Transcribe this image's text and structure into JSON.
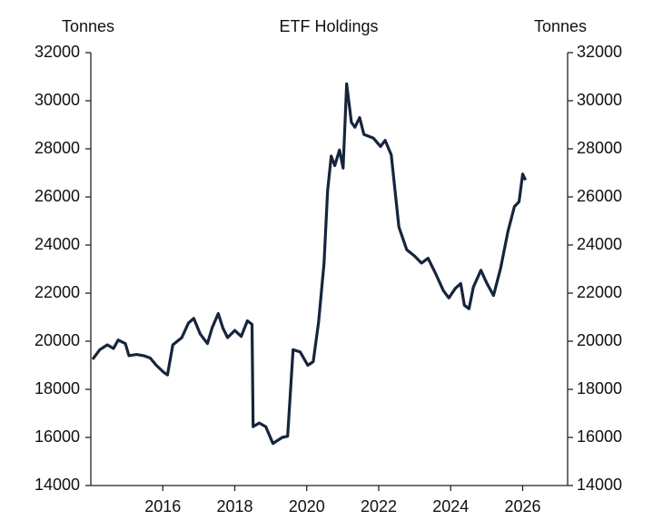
{
  "chart_data": {
    "type": "line",
    "title": "ETF Holdings",
    "ylabel": "Tonnes",
    "y2label": "Tonnes",
    "xlim": [
      2014,
      2027.25
    ],
    "xticks": [
      2016,
      2018,
      2020,
      2022,
      2024,
      2026
    ],
    "ylim": [
      14000,
      32000
    ],
    "yticks": [
      14000,
      16000,
      18000,
      20000,
      22000,
      24000,
      26000,
      28000,
      30000,
      32000
    ],
    "y2lim": [
      14000,
      32000
    ],
    "y2ticks": [
      14000,
      16000,
      18000,
      20000,
      22000,
      24000,
      26000,
      28000,
      30000,
      32000
    ],
    "series": [
      {
        "name": "ETF Holdings",
        "color": "#16253b",
        "x": [
          2014.05,
          2014.25,
          2014.46,
          2014.63,
          2014.76,
          2014.96,
          2015.06,
          2015.27,
          2015.47,
          2015.65,
          2015.82,
          2016.03,
          2016.13,
          2016.28,
          2016.53,
          2016.71,
          2016.86,
          2017.04,
          2017.24,
          2017.37,
          2017.54,
          2017.67,
          2017.8,
          2018.0,
          2018.18,
          2018.35,
          2018.48,
          2018.51,
          2018.68,
          2018.86,
          2019.06,
          2019.32,
          2019.47,
          2019.62,
          2019.82,
          2020.03,
          2020.18,
          2020.33,
          2020.48,
          2020.58,
          2020.68,
          2020.78,
          2020.91,
          2021.01,
          2021.11,
          2021.24,
          2021.34,
          2021.47,
          2021.59,
          2021.85,
          2022.05,
          2022.18,
          2022.35,
          2022.56,
          2022.78,
          2022.99,
          2023.19,
          2023.37,
          2023.57,
          2023.8,
          2023.95,
          2024.13,
          2024.28,
          2024.38,
          2024.51,
          2024.63,
          2024.84,
          2025.01,
          2025.19,
          2025.39,
          2025.59,
          2025.77,
          2025.9,
          2026.0,
          2026.08
        ],
        "values": [
          19250,
          19650,
          19850,
          19700,
          20050,
          19900,
          19400,
          19450,
          19400,
          19300,
          19000,
          18700,
          18600,
          19850,
          20150,
          20750,
          20950,
          20300,
          19900,
          20550,
          21150,
          20550,
          20150,
          20450,
          20200,
          20850,
          20700,
          16450,
          16600,
          16450,
          15750,
          16000,
          16050,
          19650,
          19550,
          19000,
          19150,
          20800,
          23250,
          26250,
          27700,
          27300,
          27950,
          27200,
          30700,
          29100,
          28900,
          29300,
          28600,
          28450,
          28100,
          28350,
          27750,
          24750,
          23800,
          23550,
          23250,
          23450,
          22850,
          22100,
          21800,
          22200,
          22400,
          21500,
          21350,
          22250,
          22950,
          22400,
          21900,
          23050,
          24550,
          25600,
          25800,
          26950,
          26700
        ]
      }
    ]
  }
}
